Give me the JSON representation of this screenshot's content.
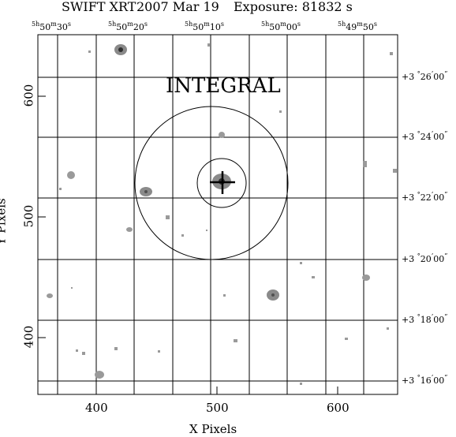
{
  "header": {
    "instrument": "SWIFT XRT",
    "date": "2007 Mar 19",
    "exposure": "Exposure: 81832 s"
  },
  "annotation": "INTEGRAL",
  "axes": {
    "x_label": "X Pixels",
    "y_label": "Y Pixels",
    "x_ticks": [
      "400",
      "500",
      "600"
    ],
    "y_ticks": [
      "600",
      "500",
      "400"
    ]
  },
  "ra_labels": [
    {
      "h": "5",
      "hs": "h",
      "m": "50",
      "ms": "m",
      "s": "30",
      "ss": "s"
    },
    {
      "h": "5",
      "hs": "h",
      "m": "50",
      "ms": "m",
      "s": "20",
      "ss": "s"
    },
    {
      "h": "5",
      "hs": "h",
      "m": "50",
      "ms": "m",
      "s": "10",
      "ss": "s"
    },
    {
      "h": "5",
      "hs": "h",
      "m": "50",
      "ms": "m",
      "s": "00",
      "ss": "s"
    },
    {
      "h": "5",
      "hs": "h",
      "m": "49",
      "ms": "m",
      "s": "50",
      "ss": "s"
    }
  ],
  "dec_labels": [
    {
      "deg": "+3",
      "ds": "°",
      "m": "26",
      "ms": "’",
      "s": "00",
      "ss": "”"
    },
    {
      "deg": "+3",
      "ds": "°",
      "m": "24",
      "ms": "’",
      "s": "00",
      "ss": "”"
    },
    {
      "deg": "+3",
      "ds": "°",
      "m": "22",
      "ms": "’",
      "s": "00",
      "ss": "”"
    },
    {
      "deg": "+3",
      "ds": "°",
      "m": "20",
      "ms": "’",
      "s": "00",
      "ss": "”"
    },
    {
      "deg": "+3",
      "ds": "°",
      "m": "18",
      "ms": "’",
      "s": "00",
      "ss": "”"
    },
    {
      "deg": "+3",
      "ds": "°",
      "m": "16",
      "ms": "’",
      "s": "00",
      "ss": "”"
    }
  ],
  "colors": {
    "ink": "#000000",
    "source": "#808080",
    "core": "#404040"
  }
}
